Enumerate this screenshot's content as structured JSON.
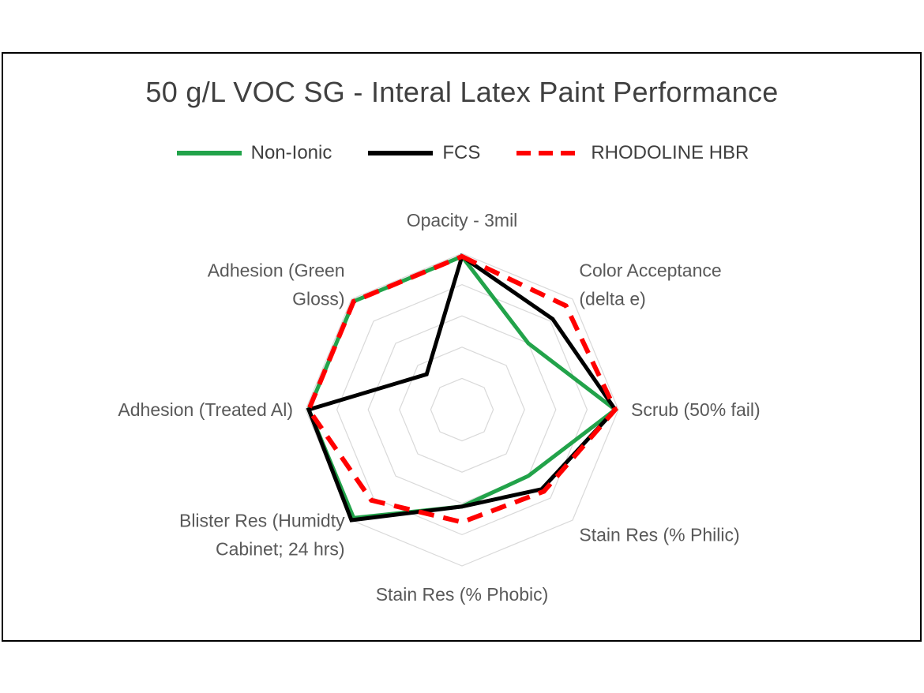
{
  "chart_data": {
    "type": "radar",
    "title": "50 g/L VOC SG - Interal Latex Paint Performance",
    "categories": [
      "Opacity - 3mil",
      "Color Acceptance (delta e)",
      "Scrub (50% fail)",
      "Stain Res (% Philic)",
      "Stain Res (% Phobic)",
      "Blister Res (Humidty Cabinet; 24 hrs)",
      "Adhesion (Treated Al)",
      "Adhesion (Green Gloss)"
    ],
    "axis_label_lines": [
      [
        "Opacity - 3mil"
      ],
      [
        "Color Acceptance",
        "(delta e)"
      ],
      [
        "Scrub (50% fail)"
      ],
      [
        "Stain Res (% Philic)"
      ],
      [
        "Stain Res (% Phobic)"
      ],
      [
        "Blister Res (Humidty",
        "Cabinet; 24 hrs)"
      ],
      [
        "Adhesion (Treated Al)"
      ],
      [
        "Adhesion (Green",
        "Gloss)"
      ]
    ],
    "rlim": [
      0,
      5
    ],
    "grid_rings": 5,
    "grid": true,
    "legend_position": "top",
    "series": [
      {
        "name": "Non-Ionic",
        "color": "#22a34a",
        "style": "solid",
        "values": [
          4.9,
          3.0,
          4.9,
          3.0,
          3.1,
          4.9,
          4.9,
          4.9
        ]
      },
      {
        "name": "FCS",
        "color": "#000000",
        "style": "solid",
        "values": [
          4.9,
          4.1,
          4.9,
          3.6,
          3.1,
          5.0,
          4.9,
          1.6
        ]
      },
      {
        "name": "RHODOLINE HBR",
        "color": "#ff0000",
        "style": "dashed",
        "values": [
          4.9,
          4.7,
          4.9,
          3.7,
          3.6,
          4.1,
          4.9,
          4.9
        ]
      }
    ]
  }
}
